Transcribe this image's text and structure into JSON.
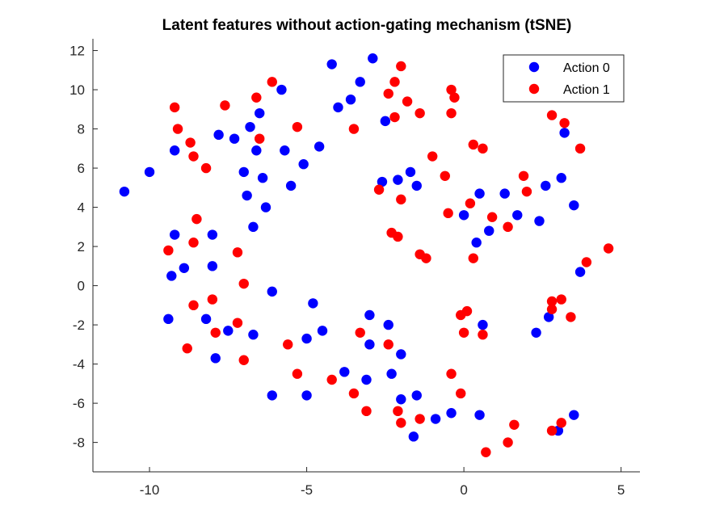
{
  "chart_data": {
    "type": "scatter",
    "title": "Latent features without action-gating mechanism (tSNE)",
    "xlabel": "",
    "ylabel": "",
    "xlim": [
      -11.8,
      5.6
    ],
    "ylim": [
      -9.5,
      12.6
    ],
    "xticks": [
      -10,
      -5,
      0,
      5
    ],
    "yticks": [
      -8,
      -6,
      -4,
      -2,
      0,
      2,
      4,
      6,
      8,
      10,
      12
    ],
    "grid": false,
    "legend_position": "top-right",
    "series": [
      {
        "name": "Action 0",
        "color": "#0000ff",
        "points": [
          [
            -10.8,
            4.8
          ],
          [
            -10.0,
            5.8
          ],
          [
            -9.2,
            6.9
          ],
          [
            -9.2,
            2.6
          ],
          [
            -9.3,
            0.5
          ],
          [
            -8.9,
            0.9
          ],
          [
            -9.4,
            -1.7
          ],
          [
            -8.0,
            2.6
          ],
          [
            -8.0,
            1.0
          ],
          [
            -8.2,
            -1.7
          ],
          [
            -7.9,
            -3.7
          ],
          [
            -7.5,
            -2.3
          ],
          [
            -7.8,
            7.7
          ],
          [
            -7.3,
            7.5
          ],
          [
            -7.0,
            5.8
          ],
          [
            -6.9,
            4.6
          ],
          [
            -6.8,
            8.1
          ],
          [
            -6.6,
            6.9
          ],
          [
            -6.5,
            8.8
          ],
          [
            -6.4,
            5.5
          ],
          [
            -6.3,
            4.0
          ],
          [
            -6.7,
            3.0
          ],
          [
            -6.7,
            -2.5
          ],
          [
            -6.1,
            -0.3
          ],
          [
            -6.1,
            -5.6
          ],
          [
            -5.8,
            10.0
          ],
          [
            -5.7,
            6.9
          ],
          [
            -5.5,
            5.1
          ],
          [
            -5.1,
            6.2
          ],
          [
            -4.6,
            7.1
          ],
          [
            -5.0,
            -2.7
          ],
          [
            -4.8,
            -0.9
          ],
          [
            -5.0,
            -5.6
          ],
          [
            -4.5,
            -2.3
          ],
          [
            -4.2,
            11.3
          ],
          [
            -4.0,
            9.1
          ],
          [
            -3.6,
            9.5
          ],
          [
            -3.3,
            10.4
          ],
          [
            -2.9,
            11.6
          ],
          [
            -2.5,
            8.4
          ],
          [
            -3.8,
            -4.4
          ],
          [
            -3.0,
            -1.5
          ],
          [
            -3.0,
            -3.0
          ],
          [
            -3.1,
            -4.8
          ],
          [
            -2.4,
            -2.0
          ],
          [
            -2.3,
            -4.5
          ],
          [
            -2.0,
            -3.5
          ],
          [
            -2.0,
            -5.8
          ],
          [
            -1.5,
            -5.6
          ],
          [
            -1.6,
            -7.7
          ],
          [
            -0.9,
            -6.8
          ],
          [
            -0.4,
            -6.5
          ],
          [
            -2.6,
            5.3
          ],
          [
            -2.1,
            5.4
          ],
          [
            -1.7,
            5.8
          ],
          [
            -1.5,
            5.1
          ],
          [
            0.0,
            3.6
          ],
          [
            0.4,
            2.2
          ],
          [
            0.5,
            4.7
          ],
          [
            0.8,
            2.8
          ],
          [
            1.3,
            4.7
          ],
          [
            1.7,
            3.6
          ],
          [
            2.4,
            3.3
          ],
          [
            2.6,
            5.1
          ],
          [
            3.1,
            5.5
          ],
          [
            3.5,
            4.1
          ],
          [
            3.2,
            7.8
          ],
          [
            3.7,
            0.7
          ],
          [
            0.6,
            -2.0
          ],
          [
            2.3,
            -2.4
          ],
          [
            2.7,
            -1.6
          ],
          [
            0.5,
            -6.6
          ],
          [
            3.0,
            -7.4
          ],
          [
            3.5,
            -6.6
          ]
        ]
      },
      {
        "name": "Action 1",
        "color": "#ff0000",
        "points": [
          [
            -9.2,
            9.1
          ],
          [
            -9.1,
            8.0
          ],
          [
            -8.7,
            7.3
          ],
          [
            -8.6,
            6.6
          ],
          [
            -8.2,
            6.0
          ],
          [
            -7.6,
            9.2
          ],
          [
            -8.5,
            3.4
          ],
          [
            -8.6,
            2.2
          ],
          [
            -9.4,
            1.8
          ],
          [
            -8.8,
            -3.2
          ],
          [
            -8.6,
            -1.0
          ],
          [
            -8.0,
            -0.7
          ],
          [
            -7.9,
            -2.4
          ],
          [
            -7.2,
            1.7
          ],
          [
            -7.2,
            -1.9
          ],
          [
            -7.0,
            0.1
          ],
          [
            -7.0,
            -3.8
          ],
          [
            -6.6,
            9.6
          ],
          [
            -6.5,
            7.5
          ],
          [
            -6.1,
            10.4
          ],
          [
            -5.3,
            8.1
          ],
          [
            -5.6,
            -3.0
          ],
          [
            -5.3,
            -4.5
          ],
          [
            -4.2,
            -4.8
          ],
          [
            -3.5,
            -5.5
          ],
          [
            -3.3,
            -2.4
          ],
          [
            -3.1,
            -6.4
          ],
          [
            -3.5,
            8.0
          ],
          [
            -2.7,
            4.9
          ],
          [
            -2.4,
            9.8
          ],
          [
            -2.2,
            10.4
          ],
          [
            -2.0,
            11.2
          ],
          [
            -1.8,
            9.4
          ],
          [
            -2.2,
            8.6
          ],
          [
            -1.4,
            8.8
          ],
          [
            -1.0,
            6.6
          ],
          [
            -2.0,
            4.4
          ],
          [
            -2.3,
            2.7
          ],
          [
            -2.1,
            2.5
          ],
          [
            -1.4,
            1.6
          ],
          [
            -1.2,
            1.4
          ],
          [
            -2.4,
            -3.0
          ],
          [
            -2.1,
            -6.4
          ],
          [
            -2.0,
            -7.0
          ],
          [
            -1.4,
            -6.8
          ],
          [
            -0.4,
            10.0
          ],
          [
            -0.3,
            9.6
          ],
          [
            -0.4,
            8.8
          ],
          [
            -0.6,
            5.6
          ],
          [
            -0.5,
            3.7
          ],
          [
            0.3,
            7.2
          ],
          [
            0.6,
            7.0
          ],
          [
            0.2,
            4.2
          ],
          [
            0.9,
            3.5
          ],
          [
            1.4,
            3.0
          ],
          [
            1.9,
            5.6
          ],
          [
            2.0,
            4.8
          ],
          [
            0.3,
            1.4
          ],
          [
            -0.1,
            -1.5
          ],
          [
            0.1,
            -1.3
          ],
          [
            0.0,
            -2.4
          ],
          [
            0.6,
            -2.5
          ],
          [
            -0.4,
            -4.5
          ],
          [
            -0.1,
            -5.5
          ],
          [
            0.7,
            -8.5
          ],
          [
            1.6,
            -7.1
          ],
          [
            1.4,
            -8.0
          ],
          [
            2.8,
            8.7
          ],
          [
            3.2,
            8.3
          ],
          [
            3.7,
            7.0
          ],
          [
            2.8,
            -0.8
          ],
          [
            3.1,
            -0.7
          ],
          [
            2.8,
            -1.2
          ],
          [
            3.4,
            -1.6
          ],
          [
            2.8,
            -7.4
          ],
          [
            3.1,
            -7.0
          ],
          [
            3.9,
            1.2
          ],
          [
            4.6,
            1.9
          ]
        ]
      }
    ]
  }
}
